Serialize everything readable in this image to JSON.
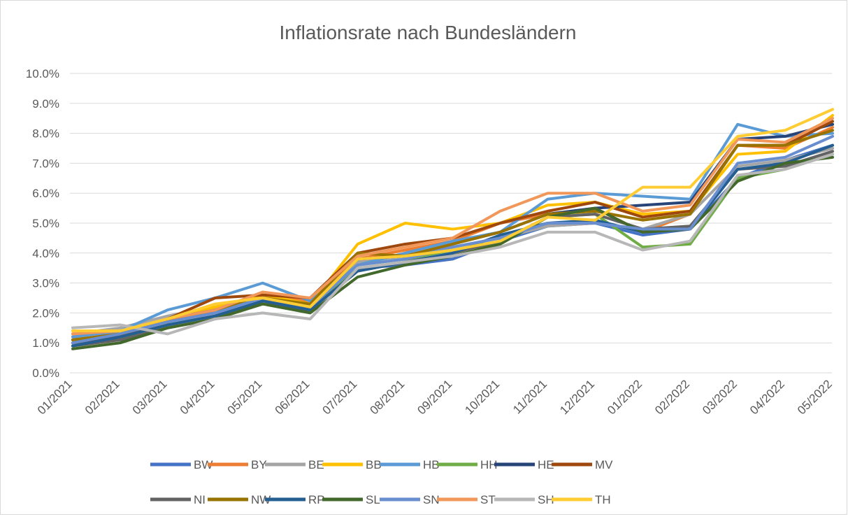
{
  "chart_data": {
    "type": "line",
    "title": "Inflationsrate nach Bundesländern",
    "categories": [
      "01/2021",
      "02/2021",
      "03/2021",
      "04/2021",
      "05/2021",
      "06/2021",
      "07/2021",
      "08/2021",
      "09/2021",
      "10/2021",
      "11/2021",
      "12/2021",
      "01/2022",
      "02/2022",
      "03/2022",
      "04/2022",
      "05/2022"
    ],
    "ylim": [
      0,
      10
    ],
    "yticks": [
      {
        "value": 0,
        "label": "0.0%"
      },
      {
        "value": 1,
        "label": "1.0%"
      },
      {
        "value": 2,
        "label": "2.0%"
      },
      {
        "value": 3,
        "label": "3.0%"
      },
      {
        "value": 4,
        "label": "4.0%"
      },
      {
        "value": 5,
        "label": "5.0%"
      },
      {
        "value": 6,
        "label": "6.0%"
      },
      {
        "value": 7,
        "label": "7.0%"
      },
      {
        "value": 8,
        "label": "8.0%"
      },
      {
        "value": 9,
        "label": "9.0%"
      },
      {
        "value": 10,
        "label": "10.0%"
      }
    ],
    "grid": true,
    "legend": "bottom",
    "series": [
      {
        "name": "BW",
        "color": "#4472C4",
        "values": [
          1.0,
          1.2,
          1.6,
          1.9,
          2.4,
          2.2,
          3.5,
          3.6,
          3.8,
          4.4,
          4.9,
          5.0,
          4.6,
          4.8,
          6.5,
          7.1,
          7.6
        ]
      },
      {
        "name": "BY",
        "color": "#ED7D31",
        "values": [
          1.2,
          1.4,
          1.7,
          2.1,
          2.6,
          2.4,
          3.8,
          4.1,
          4.4,
          5.0,
          5.3,
          5.5,
          4.7,
          5.3,
          7.6,
          7.5,
          8.2
        ]
      },
      {
        "name": "BE",
        "color": "#A5A5A5",
        "values": [
          1.3,
          1.5,
          1.9,
          2.2,
          2.5,
          2.3,
          3.7,
          3.9,
          4.2,
          4.5,
          4.9,
          5.0,
          4.8,
          5.3,
          6.9,
          7.1,
          7.5
        ]
      },
      {
        "name": "BB",
        "color": "#FFC000",
        "values": [
          1.4,
          1.4,
          1.8,
          2.2,
          2.6,
          2.3,
          4.3,
          5.0,
          4.8,
          5.0,
          5.6,
          5.7,
          5.3,
          5.4,
          7.3,
          7.4,
          8.6
        ]
      },
      {
        "name": "HB",
        "color": "#5B9BD5",
        "values": [
          1.2,
          1.4,
          2.1,
          2.5,
          3.0,
          2.4,
          3.6,
          4.0,
          4.4,
          4.7,
          5.8,
          6.0,
          5.9,
          5.8,
          8.3,
          7.9,
          8.0
        ]
      },
      {
        "name": "HH",
        "color": "#70AD47",
        "values": [
          0.9,
          1.1,
          1.6,
          1.9,
          2.3,
          2.1,
          3.6,
          3.8,
          4.1,
          4.3,
          5.2,
          5.3,
          4.2,
          4.3,
          6.5,
          6.8,
          7.3
        ]
      },
      {
        "name": "HE",
        "color": "#264478",
        "values": [
          1.1,
          1.3,
          1.8,
          2.1,
          2.5,
          2.2,
          3.8,
          3.9,
          4.3,
          4.7,
          5.3,
          5.5,
          5.6,
          5.7,
          7.8,
          7.9,
          8.3
        ]
      },
      {
        "name": "MV",
        "color": "#9E480E",
        "values": [
          1.0,
          1.2,
          1.8,
          2.5,
          2.6,
          2.5,
          4.0,
          4.3,
          4.5,
          5.0,
          5.4,
          5.7,
          5.2,
          5.4,
          7.6,
          7.6,
          8.4
        ]
      },
      {
        "name": "NI",
        "color": "#636363",
        "values": [
          0.9,
          1.1,
          1.5,
          1.8,
          2.3,
          2.1,
          3.4,
          3.7,
          4.0,
          4.4,
          5.2,
          5.3,
          4.8,
          4.9,
          6.8,
          6.9,
          7.4
        ]
      },
      {
        "name": "NW",
        "color": "#997300",
        "values": [
          1.1,
          1.3,
          1.7,
          2.1,
          2.5,
          2.3,
          4.0,
          3.9,
          4.3,
          4.7,
          5.3,
          5.4,
          5.1,
          5.3,
          7.6,
          7.6,
          8.1
        ]
      },
      {
        "name": "RP",
        "color": "#255E91",
        "values": [
          0.9,
          1.2,
          1.6,
          1.9,
          2.4,
          2.1,
          3.4,
          3.7,
          4.0,
          4.6,
          5.0,
          5.1,
          4.7,
          4.8,
          6.8,
          7.0,
          7.6
        ]
      },
      {
        "name": "SL",
        "color": "#43682B",
        "values": [
          0.8,
          1.0,
          1.5,
          1.8,
          2.3,
          2.0,
          3.2,
          3.6,
          3.9,
          4.3,
          5.2,
          5.5,
          4.7,
          4.8,
          6.4,
          7.0,
          7.2
        ]
      },
      {
        "name": "SN",
        "color": "#698ED0",
        "values": [
          1.0,
          1.3,
          1.7,
          2.0,
          2.5,
          2.2,
          3.6,
          3.8,
          4.2,
          4.5,
          5.0,
          5.0,
          4.8,
          4.8,
          7.0,
          7.2,
          7.9
        ]
      },
      {
        "name": "ST",
        "color": "#F1975A",
        "values": [
          1.3,
          1.4,
          1.8,
          2.1,
          2.7,
          2.5,
          3.9,
          4.2,
          4.5,
          5.4,
          6.0,
          6.0,
          5.4,
          5.6,
          7.8,
          7.7,
          8.5
        ]
      },
      {
        "name": "SH",
        "color": "#B7B7B7",
        "values": [
          1.5,
          1.6,
          1.3,
          1.8,
          2.0,
          1.8,
          3.5,
          3.7,
          3.9,
          4.2,
          4.7,
          4.7,
          4.1,
          4.4,
          6.6,
          6.8,
          7.3
        ]
      },
      {
        "name": "TH",
        "color": "#FFCD33",
        "values": [
          1.4,
          1.4,
          1.8,
          2.3,
          2.5,
          2.2,
          3.8,
          3.9,
          4.1,
          4.4,
          5.2,
          5.1,
          6.2,
          6.2,
          7.9,
          8.1,
          8.8
        ]
      }
    ]
  }
}
